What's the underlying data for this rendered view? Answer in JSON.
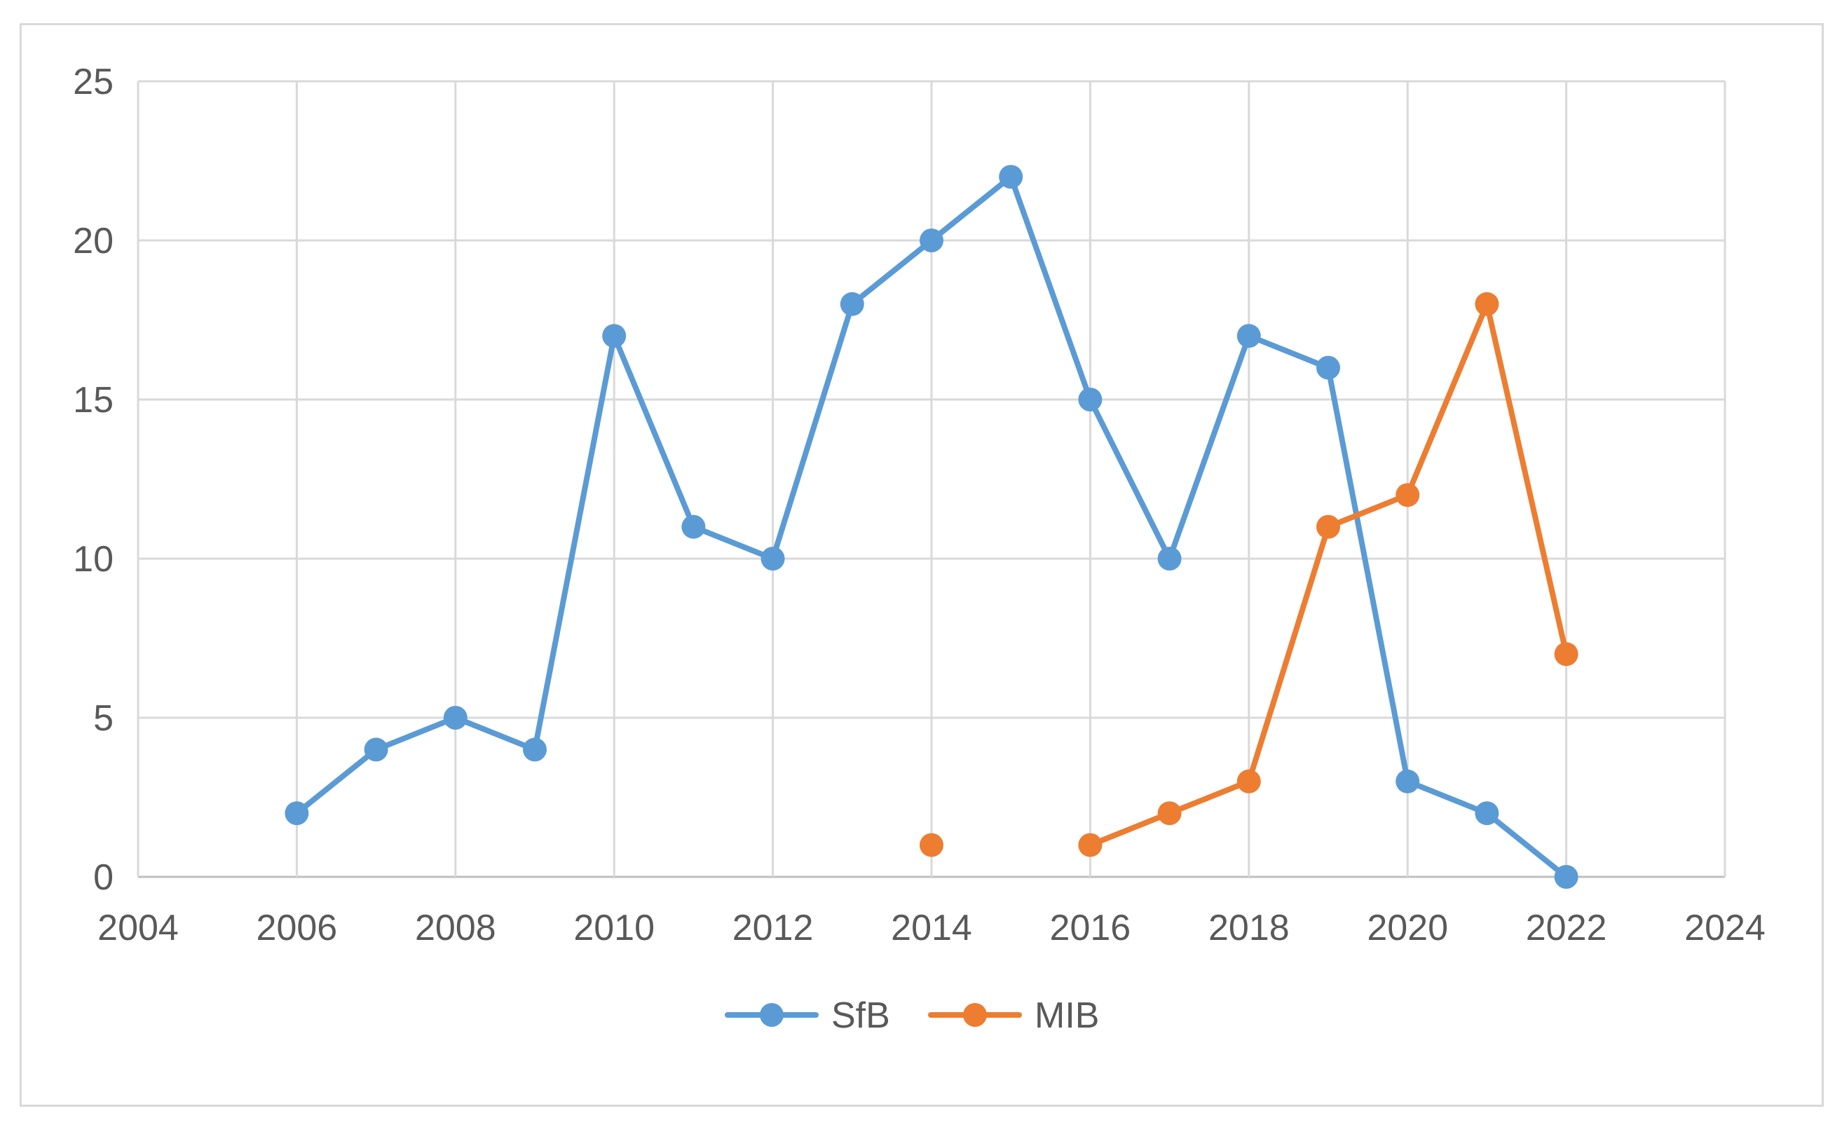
{
  "chart_data": {
    "type": "line",
    "title": "",
    "xlabel": "",
    "ylabel": "",
    "xlim": [
      2004,
      2024
    ],
    "ylim": [
      0,
      25
    ],
    "x_ticks": [
      2004,
      2006,
      2008,
      2010,
      2012,
      2014,
      2016,
      2018,
      2020,
      2022,
      2024
    ],
    "y_ticks": [
      0,
      5,
      10,
      15,
      20,
      25
    ],
    "grid": true,
    "legend_position": "bottom",
    "series": [
      {
        "name": "SfB",
        "color": "#5b9bd5",
        "points": [
          {
            "x": 2006,
            "y": 2
          },
          {
            "x": 2007,
            "y": 4
          },
          {
            "x": 2008,
            "y": 5
          },
          {
            "x": 2009,
            "y": 4
          },
          {
            "x": 2010,
            "y": 17
          },
          {
            "x": 2011,
            "y": 11
          },
          {
            "x": 2012,
            "y": 10
          },
          {
            "x": 2013,
            "y": 18
          },
          {
            "x": 2014,
            "y": 20
          },
          {
            "x": 2015,
            "y": 22
          },
          {
            "x": 2016,
            "y": 15
          },
          {
            "x": 2017,
            "y": 10
          },
          {
            "x": 2018,
            "y": 17
          },
          {
            "x": 2019,
            "y": 16
          },
          {
            "x": 2020,
            "y": 3
          },
          {
            "x": 2021,
            "y": 2
          },
          {
            "x": 2022,
            "y": 0
          }
        ]
      },
      {
        "name": "MIB",
        "color": "#ed7d31",
        "points": [
          {
            "x": 2014,
            "y": 1
          },
          {
            "x": 2016,
            "y": 1
          },
          {
            "x": 2017,
            "y": 2
          },
          {
            "x": 2018,
            "y": 3
          },
          {
            "x": 2019,
            "y": 11
          },
          {
            "x": 2020,
            "y": 12
          },
          {
            "x": 2021,
            "y": 18
          },
          {
            "x": 2022,
            "y": 7
          }
        ],
        "note_gap_after_x": 2014
      }
    ]
  }
}
